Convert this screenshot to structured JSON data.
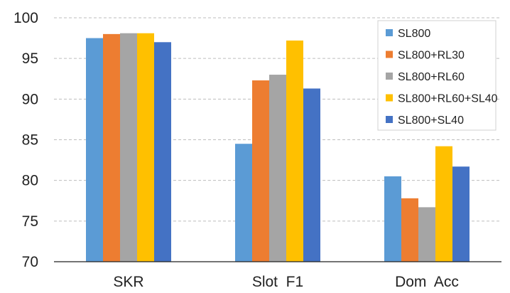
{
  "chart_data": {
    "type": "bar",
    "categories": [
      "SKR",
      "Slot  F1",
      "Dom  Acc"
    ],
    "series": [
      {
        "name": "SL800",
        "color": "#5B9BD5",
        "values": [
          97.5,
          84.5,
          80.5
        ]
      },
      {
        "name": "SL800+RL30",
        "color": "#ED7D31",
        "values": [
          98.0,
          92.3,
          77.8
        ]
      },
      {
        "name": "SL800+RL60",
        "color": "#A5A5A5",
        "values": [
          98.1,
          93.0,
          76.7
        ]
      },
      {
        "name": "SL800+RL60+SL40",
        "color": "#FFC000",
        "values": [
          98.1,
          97.2,
          84.2
        ]
      },
      {
        "name": "SL800+SL40",
        "color": "#4472C4",
        "values": [
          97.0,
          91.3,
          81.7
        ]
      }
    ],
    "title": "",
    "xlabel": "",
    "ylabel": "",
    "ylim": [
      70,
      100
    ],
    "yticks": [
      70,
      75,
      80,
      85,
      90,
      95,
      100
    ],
    "grid": true,
    "legend_position": "top-right"
  }
}
